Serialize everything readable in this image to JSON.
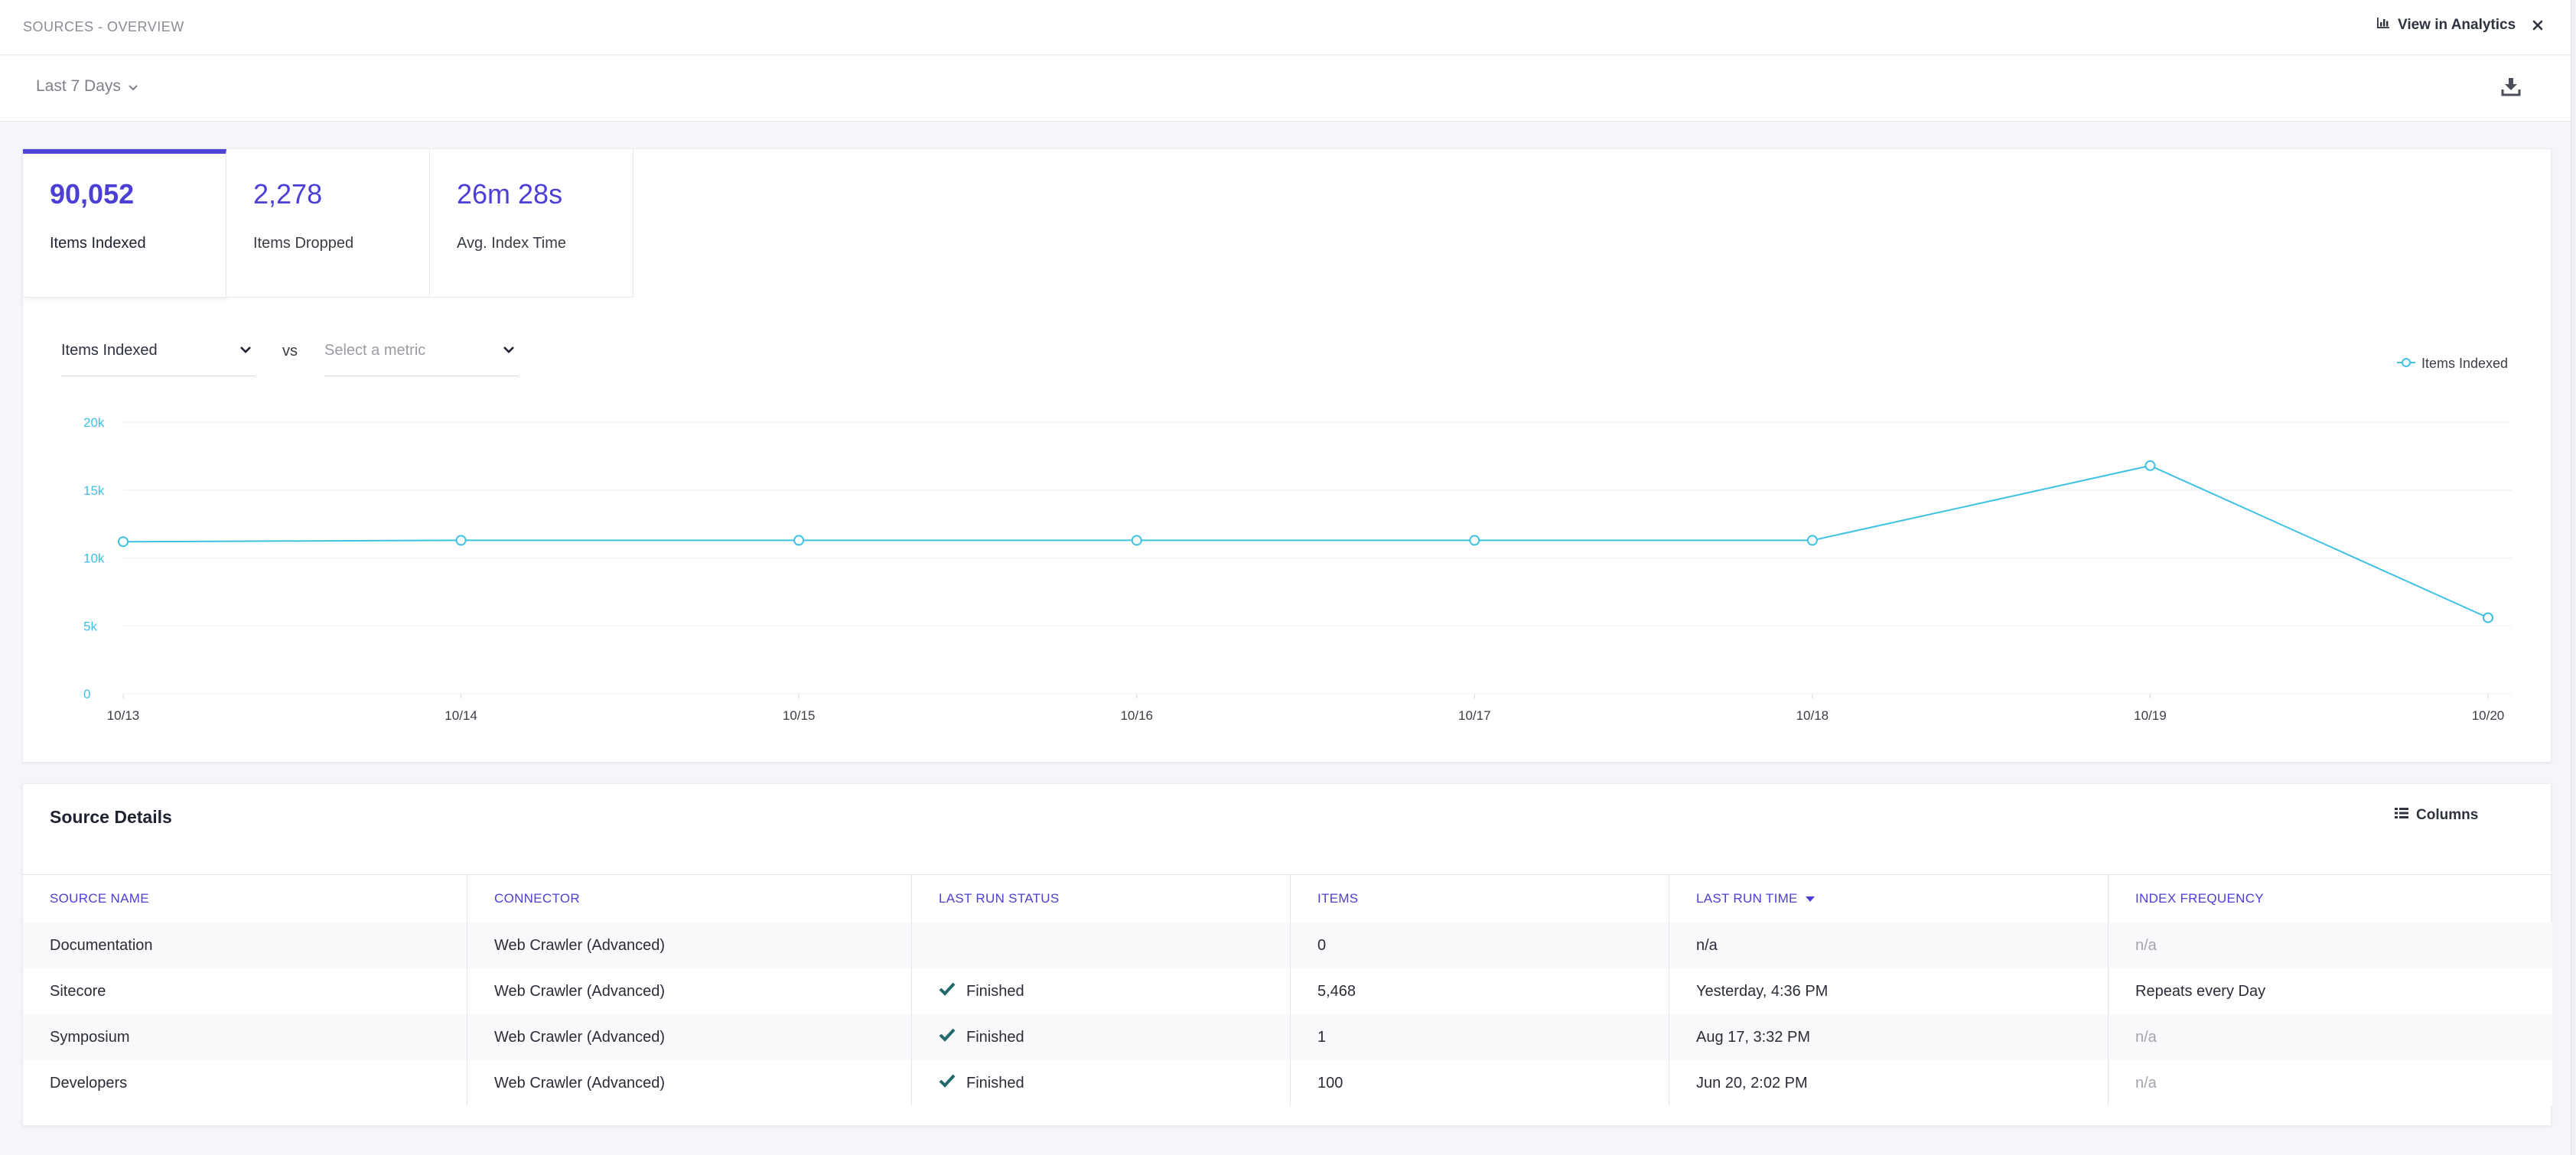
{
  "header": {
    "title": "SOURCES - OVERVIEW",
    "view_in_analytics": "View in Analytics",
    "close_icon": "close-icon"
  },
  "toolbar": {
    "date_range": "Last 7 Days",
    "download_icon": "download-icon"
  },
  "kpis": [
    {
      "value": "90,052",
      "label": "Items Indexed",
      "active": true
    },
    {
      "value": "2,278",
      "label": "Items Dropped",
      "active": false
    },
    {
      "value": "26m 28s",
      "label": "Avg. Index Time",
      "active": false
    }
  ],
  "metric_selectors": {
    "primary": "Items Indexed",
    "vs": "vs",
    "secondary_placeholder": "Select a metric"
  },
  "colors": {
    "accent": "#4b3fd6",
    "series": "#3fc1e4",
    "check": "#1f6b6b"
  },
  "chart_data": {
    "type": "line",
    "x": [
      "10/13",
      "10/14",
      "10/15",
      "10/16",
      "10/17",
      "10/18",
      "10/19",
      "10/20"
    ],
    "series": [
      {
        "name": "Items Indexed",
        "values": [
          11200,
          11300,
          11300,
          11300,
          11300,
          11300,
          16800,
          5600
        ]
      }
    ],
    "ylim": [
      0,
      20000
    ],
    "yticks": [
      0,
      5000,
      10000,
      15000,
      20000
    ],
    "ytick_labels": [
      "0",
      "5k",
      "10k",
      "15k",
      "20k"
    ],
    "grid": true,
    "legend": "top-right",
    "title": "",
    "xlabel": "",
    "ylabel": ""
  },
  "table": {
    "title": "Source Details",
    "columns_button": "Columns",
    "headers": [
      "SOURCE NAME",
      "CONNECTOR",
      "LAST RUN STATUS",
      "ITEMS",
      "LAST RUN TIME",
      "INDEX FREQUENCY"
    ],
    "sorted_column": "LAST RUN TIME",
    "rows": [
      {
        "name": "Documentation",
        "connector": "Web Crawler (Advanced)",
        "status": "",
        "items": "0",
        "last_run": "n/a",
        "frequency": "n/a"
      },
      {
        "name": "Sitecore",
        "connector": "Web Crawler (Advanced)",
        "status": "Finished",
        "items": "5,468",
        "last_run": "Yesterday, 4:36 PM",
        "frequency": "Repeats every Day"
      },
      {
        "name": "Symposium",
        "connector": "Web Crawler (Advanced)",
        "status": "Finished",
        "items": "1",
        "last_run": "Aug 17, 3:32 PM",
        "frequency": "n/a"
      },
      {
        "name": "Developers",
        "connector": "Web Crawler (Advanced)",
        "status": "Finished",
        "items": "100",
        "last_run": "Jun 20, 2:02 PM",
        "frequency": "n/a"
      }
    ]
  }
}
